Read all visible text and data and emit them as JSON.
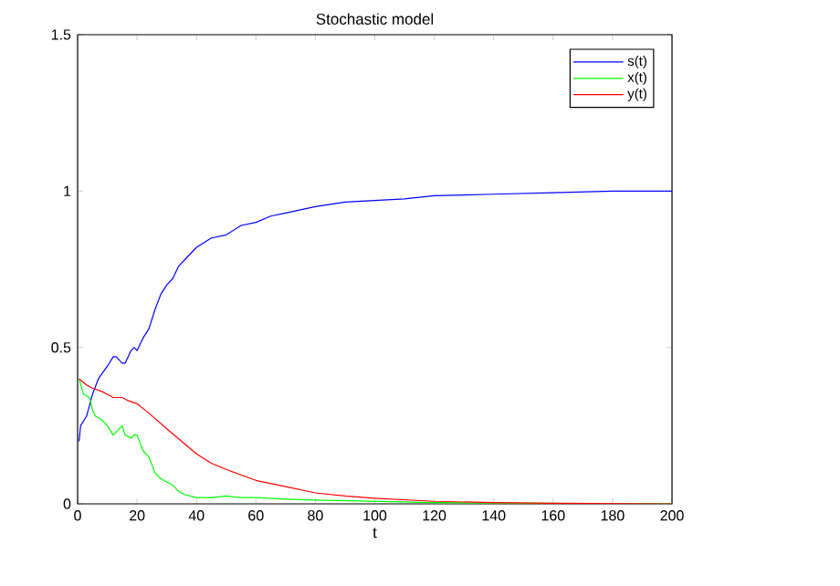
{
  "chart_data": {
    "type": "line",
    "title": "Stochastic model",
    "xlabel": "t",
    "xlim": [
      0,
      200
    ],
    "ylim": [
      0,
      1.5
    ],
    "xticks": [
      0,
      20,
      40,
      60,
      80,
      100,
      120,
      140,
      160,
      180,
      200
    ],
    "yticks": [
      0,
      0.5,
      1,
      1.5
    ],
    "legend": "top right",
    "grid": false,
    "series": [
      {
        "name": "s(t)",
        "color": "#0000ff",
        "x": [
          0.5,
          1,
          3,
          5,
          7,
          10,
          12,
          13,
          15,
          16,
          18,
          19,
          20,
          22,
          24,
          26,
          28,
          30,
          32,
          34,
          36,
          38,
          40,
          45,
          50,
          55,
          60,
          65,
          70,
          80,
          90,
          100,
          110,
          120,
          140,
          160,
          180,
          200
        ],
        "values": [
          0.2,
          0.25,
          0.28,
          0.35,
          0.4,
          0.44,
          0.47,
          0.47,
          0.45,
          0.45,
          0.49,
          0.5,
          0.49,
          0.53,
          0.56,
          0.62,
          0.67,
          0.7,
          0.72,
          0.76,
          0.78,
          0.8,
          0.82,
          0.85,
          0.86,
          0.89,
          0.9,
          0.92,
          0.93,
          0.95,
          0.965,
          0.97,
          0.975,
          0.985,
          0.99,
          0.995,
          1.0,
          1.0
        ]
      },
      {
        "name": "x(t)",
        "color": "#00ff00",
        "x": [
          0.5,
          2,
          4,
          5,
          6,
          8,
          10,
          12,
          14,
          15,
          16,
          18,
          19,
          20,
          22,
          24,
          26,
          28,
          30,
          32,
          34,
          36,
          40,
          45,
          50,
          55,
          60,
          70,
          80,
          100,
          120,
          200
        ],
        "values": [
          0.4,
          0.35,
          0.34,
          0.3,
          0.28,
          0.27,
          0.25,
          0.22,
          0.24,
          0.25,
          0.22,
          0.21,
          0.22,
          0.22,
          0.17,
          0.15,
          0.1,
          0.08,
          0.07,
          0.06,
          0.04,
          0.03,
          0.02,
          0.02,
          0.025,
          0.02,
          0.02,
          0.015,
          0.012,
          0.008,
          0.004,
          0
        ]
      },
      {
        "name": "y(t)",
        "color": "#ff0000",
        "x": [
          0.5,
          3,
          5,
          8,
          10,
          12,
          15,
          17,
          20,
          24,
          30,
          35,
          40,
          45,
          50,
          60,
          70,
          80,
          90,
          100,
          120,
          140,
          160,
          200
        ],
        "values": [
          0.4,
          0.38,
          0.37,
          0.36,
          0.35,
          0.34,
          0.34,
          0.33,
          0.32,
          0.29,
          0.24,
          0.2,
          0.16,
          0.13,
          0.11,
          0.075,
          0.055,
          0.035,
          0.025,
          0.018,
          0.008,
          0.004,
          0.002,
          0
        ]
      }
    ]
  }
}
